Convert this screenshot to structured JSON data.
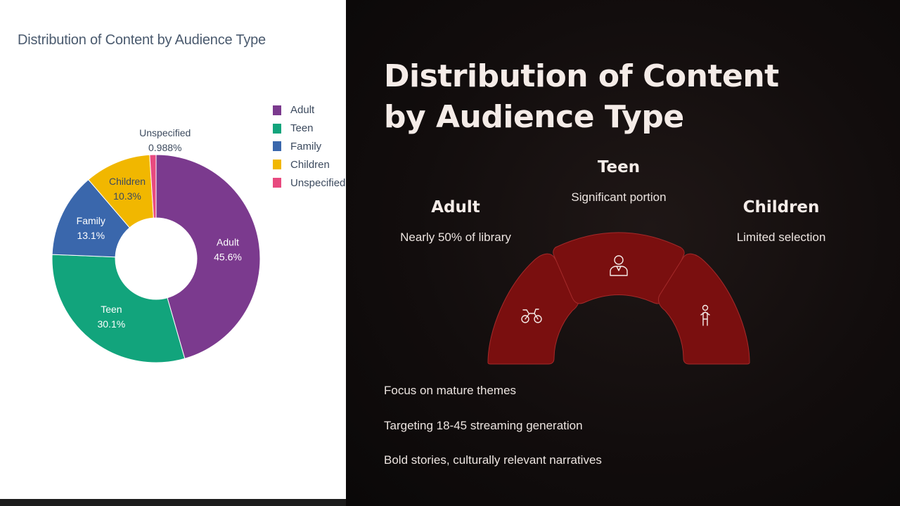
{
  "chart_data": {
    "type": "pie",
    "title": "Distribution of Content by Audience Type",
    "categories": [
      "Adult",
      "Teen",
      "Family",
      "Children",
      "Unspecified"
    ],
    "values": [
      45.6,
      30.1,
      13.1,
      10.3,
      0.988
    ],
    "value_labels": [
      "45.6%",
      "30.1%",
      "13.1%",
      "10.3%",
      "0.988%"
    ],
    "colors": [
      "#7b3a8e",
      "#12a47c",
      "#3a67ac",
      "#f1b700",
      "#e84a7f"
    ],
    "hole": true,
    "legend_position": "right"
  },
  "slide": {
    "title_line1": "Distribution of Content",
    "title_line2": "by Audience Type",
    "segments": [
      {
        "heading": "Adult",
        "description": "Nearly 50% of library",
        "icon": "motorcycle-icon"
      },
      {
        "heading": "Teen",
        "description": "Significant portion",
        "icon": "person-icon"
      },
      {
        "heading": "Children",
        "description": "Limited selection",
        "icon": "child-icon"
      }
    ],
    "bullets": [
      "Focus on mature themes",
      "Targeting 18-45 streaming generation",
      "Bold stories, culturally relevant narratives"
    ],
    "accent_color": "#7a0f0f"
  }
}
